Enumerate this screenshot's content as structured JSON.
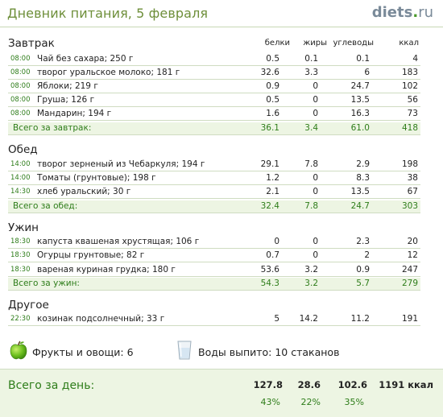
{
  "header": {
    "title": "Дневник питания, 5 февраля",
    "logo_main": "diets",
    "logo_dot": ".",
    "logo_tld": "ru"
  },
  "columns": {
    "protein": "белки",
    "fat": "жиры",
    "carbs": "углеводы",
    "kcal": "ккал"
  },
  "meals": [
    {
      "name": "Завтрак",
      "items": [
        {
          "time": "08:00",
          "food": "Чай без сахара; 250 г",
          "protein": "0.5",
          "fat": "0.1",
          "carbs": "0.1",
          "kcal": "4"
        },
        {
          "time": "08:00",
          "food": "творог уральское молоко; 181 г",
          "protein": "32.6",
          "fat": "3.3",
          "carbs": "6",
          "kcal": "183"
        },
        {
          "time": "08:00",
          "food": "Яблоки; 219 г",
          "protein": "0.9",
          "fat": "0",
          "carbs": "24.7",
          "kcal": "102"
        },
        {
          "time": "08:00",
          "food": "Груша; 126 г",
          "protein": "0.5",
          "fat": "0",
          "carbs": "13.5",
          "kcal": "56"
        },
        {
          "time": "08:00",
          "food": "Мандарин; 194 г",
          "protein": "1.6",
          "fat": "0",
          "carbs": "16.3",
          "kcal": "73"
        }
      ],
      "total": {
        "label": "Всего за завтрак:",
        "protein": "36.1",
        "fat": "3.4",
        "carbs": "61.0",
        "kcal": "418"
      }
    },
    {
      "name": "Обед",
      "items": [
        {
          "time": "14:00",
          "food": "творог зерненый из Чебаркуля; 194 г",
          "protein": "29.1",
          "fat": "7.8",
          "carbs": "2.9",
          "kcal": "198"
        },
        {
          "time": "14:00",
          "food": "Томаты (грунтовые); 198 г",
          "protein": "1.2",
          "fat": "0",
          "carbs": "8.3",
          "kcal": "38"
        },
        {
          "time": "14:30",
          "food": "хлеб уральский; 30 г",
          "protein": "2.1",
          "fat": "0",
          "carbs": "13.5",
          "kcal": "67"
        }
      ],
      "total": {
        "label": "Всего за обед:",
        "protein": "32.4",
        "fat": "7.8",
        "carbs": "24.7",
        "kcal": "303"
      }
    },
    {
      "name": "Ужин",
      "items": [
        {
          "time": "18:30",
          "food": "капуста квашеная хрустящая; 106 г",
          "protein": "0",
          "fat": "0",
          "carbs": "2.3",
          "kcal": "20"
        },
        {
          "time": "18:30",
          "food": "Огурцы грунтовые; 82 г",
          "protein": "0.7",
          "fat": "0",
          "carbs": "2",
          "kcal": "12"
        },
        {
          "time": "18:30",
          "food": "вареная куриная грудка; 180 г",
          "protein": "53.6",
          "fat": "3.2",
          "carbs": "0.9",
          "kcal": "247"
        }
      ],
      "total": {
        "label": "Всего за ужин:",
        "protein": "54.3",
        "fat": "3.2",
        "carbs": "5.7",
        "kcal": "279"
      }
    },
    {
      "name": "Другое",
      "items": [
        {
          "time": "22:30",
          "food": "козинак подсолнечный; 33 г",
          "protein": "5",
          "fat": "14.2",
          "carbs": "11.2",
          "kcal": "191"
        }
      ]
    }
  ],
  "extras": {
    "fruits_label": "Фрукты и овощи: 6",
    "water_label": "Воды выпито: 10 стаканов",
    "apple_icon": "apple-icon",
    "glass_icon": "water-glass-icon"
  },
  "day": {
    "label": "Всего за день:",
    "protein": "127.8",
    "fat": "28.6",
    "carbs": "102.6",
    "kcal": "1191 ккал",
    "protein_pct": "43%",
    "fat_pct": "22%",
    "carbs_pct": "35%"
  },
  "colors": {
    "accent_green": "#2e7d1a",
    "title_green": "#6e8f3a",
    "total_bg": "#edf5e3"
  }
}
